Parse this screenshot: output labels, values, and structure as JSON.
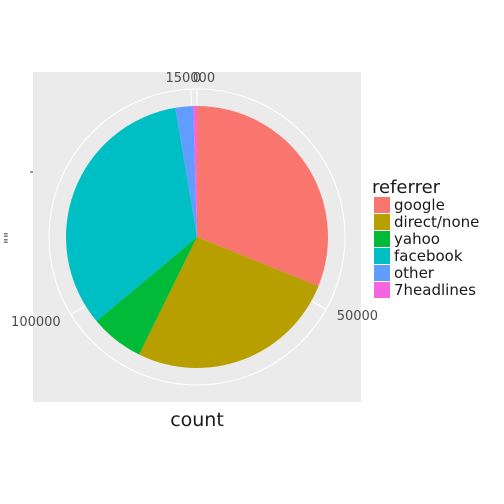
{
  "chart_data": {
    "type": "pie",
    "xlabel": "count",
    "ylabel": "\"\"",
    "y_tick_label": "",
    "count_ticks": [
      {
        "value": 0,
        "label": "0"
      },
      {
        "value": 50000,
        "label": "50000"
      },
      {
        "value": 100000,
        "label": "100000"
      },
      {
        "value": 150000,
        "label": "150000"
      }
    ],
    "total": 151000,
    "legend_title": "referrer",
    "legend_position": "right",
    "slices": [
      {
        "label": "google",
        "value": 47000,
        "color": "#F8766D"
      },
      {
        "label": "direct/none",
        "value": 39500,
        "color": "#B79F00"
      },
      {
        "label": "yahoo",
        "value": 10000,
        "color": "#00BA38"
      },
      {
        "label": "facebook",
        "value": 50500,
        "color": "#00BFC4"
      },
      {
        "label": "other",
        "value": 3300,
        "color": "#619CFF"
      },
      {
        "label": "7headlines",
        "value": 700,
        "color": "#F564E3"
      }
    ],
    "panel_background": "#EBEBEB",
    "grid_color": "#FFFFFF"
  }
}
